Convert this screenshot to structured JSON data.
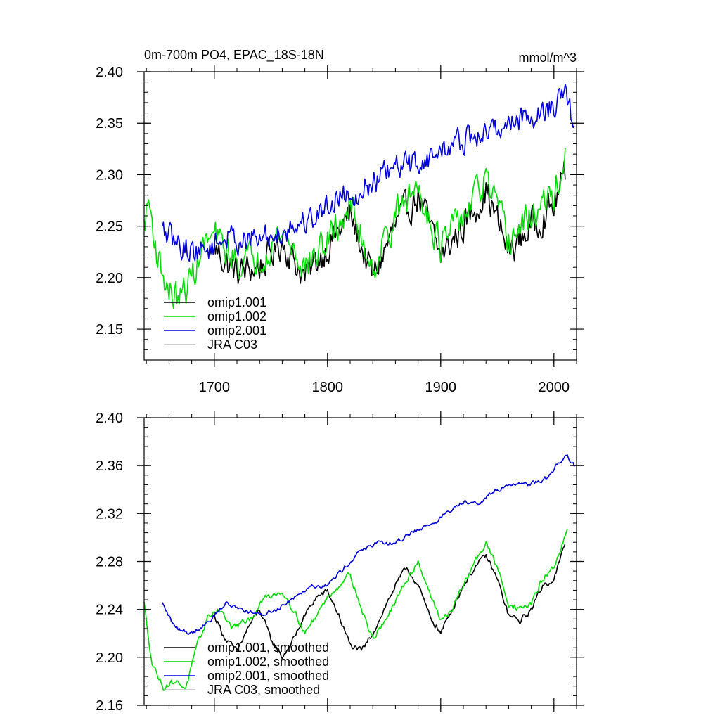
{
  "top": {
    "title_left": "0m-700m PO4, EPAC_18S-18N",
    "title_right": "mmol/m^3"
  },
  "chart_data": [
    {
      "type": "line",
      "title": "0m-700m PO4, EPAC_18S-18N",
      "units": "mmol/m^3",
      "xlabel": "",
      "ylabel": "",
      "xlim": [
        1638,
        2020
      ],
      "ylim": [
        2.12,
        2.4
      ],
      "xticks": [
        1700,
        1800,
        1900,
        2000
      ],
      "yticks": [
        2.15,
        2.2,
        2.25,
        2.3,
        2.35,
        2.4
      ],
      "legend_position": "bottom-left",
      "series": [
        {
          "name": "omip1.001",
          "color": "#000000",
          "x_range": [
            1700,
            2010
          ],
          "anchors": [
            [
              1700,
              2.23
            ],
            [
              1710,
              2.215
            ],
            [
              1720,
              2.205
            ],
            [
              1740,
              2.21
            ],
            [
              1760,
              2.235
            ],
            [
              1780,
              2.2
            ],
            [
              1800,
              2.23
            ],
            [
              1820,
              2.26
            ],
            [
              1840,
              2.2
            ],
            [
              1860,
              2.25
            ],
            [
              1880,
              2.28
            ],
            [
              1900,
              2.22
            ],
            [
              1920,
              2.25
            ],
            [
              1940,
              2.285
            ],
            [
              1960,
              2.225
            ],
            [
              1980,
              2.25
            ],
            [
              2000,
              2.27
            ],
            [
              2010,
              2.3
            ]
          ],
          "amp": 0.025
        },
        {
          "name": "omip1.002",
          "color": "#00dd00",
          "x_range": [
            1638,
            2010
          ],
          "anchors": [
            [
              1638,
              2.25
            ],
            [
              1642,
              2.275
            ],
            [
              1650,
              2.22
            ],
            [
              1660,
              2.185
            ],
            [
              1670,
              2.18
            ],
            [
              1680,
              2.2
            ],
            [
              1690,
              2.23
            ],
            [
              1700,
              2.24
            ],
            [
              1720,
              2.215
            ],
            [
              1740,
              2.22
            ],
            [
              1760,
              2.245
            ],
            [
              1780,
              2.21
            ],
            [
              1800,
              2.235
            ],
            [
              1820,
              2.27
            ],
            [
              1840,
              2.21
            ],
            [
              1860,
              2.26
            ],
            [
              1880,
              2.29
            ],
            [
              1900,
              2.23
            ],
            [
              1920,
              2.26
            ],
            [
              1940,
              2.295
            ],
            [
              1960,
              2.235
            ],
            [
              1980,
              2.26
            ],
            [
              2000,
              2.28
            ],
            [
              2010,
              2.315
            ]
          ],
          "amp": 0.025
        },
        {
          "name": "omip2.001",
          "color": "#0000dd",
          "x_range": [
            1654,
            2018
          ],
          "anchors": [
            [
              1654,
              2.245
            ],
            [
              1670,
              2.23
            ],
            [
              1690,
              2.225
            ],
            [
              1710,
              2.24
            ],
            [
              1730,
              2.235
            ],
            [
              1750,
              2.24
            ],
            [
              1770,
              2.25
            ],
            [
              1790,
              2.26
            ],
            [
              1810,
              2.28
            ],
            [
              1830,
              2.285
            ],
            [
              1850,
              2.3
            ],
            [
              1870,
              2.31
            ],
            [
              1890,
              2.315
            ],
            [
              1910,
              2.33
            ],
            [
              1930,
              2.335
            ],
            [
              1950,
              2.345
            ],
            [
              1970,
              2.355
            ],
            [
              1990,
              2.36
            ],
            [
              2010,
              2.375
            ],
            [
              2018,
              2.35
            ]
          ],
          "amp": 0.02
        },
        {
          "name": "JRA C03",
          "color": "#bbbbbb",
          "x_range": null,
          "anchors": [],
          "amp": 0
        }
      ]
    },
    {
      "type": "line",
      "title": "",
      "xlabel": "",
      "ylabel": "",
      "xlim": [
        1638,
        2020
      ],
      "ylim": [
        2.16,
        2.4
      ],
      "xticks": [
        1700,
        1800,
        1900,
        2000
      ],
      "yticks": [
        2.16,
        2.2,
        2.24,
        2.28,
        2.32,
        2.36,
        2.4
      ],
      "legend_position": "bottom-left",
      "series": [
        {
          "name": "omip1.001, smoothed",
          "color": "#000000",
          "x_range": [
            1700,
            2010
          ],
          "anchors": [
            [
              1700,
              2.235
            ],
            [
              1710,
              2.215
            ],
            [
              1720,
              2.205
            ],
            [
              1730,
              2.225
            ],
            [
              1740,
              2.24
            ],
            [
              1750,
              2.215
            ],
            [
              1760,
              2.2
            ],
            [
              1770,
              2.215
            ],
            [
              1780,
              2.235
            ],
            [
              1790,
              2.25
            ],
            [
              1800,
              2.255
            ],
            [
              1810,
              2.235
            ],
            [
              1820,
              2.21
            ],
            [
              1830,
              2.205
            ],
            [
              1840,
              2.22
            ],
            [
              1850,
              2.24
            ],
            [
              1860,
              2.26
            ],
            [
              1870,
              2.275
            ],
            [
              1880,
              2.26
            ],
            [
              1890,
              2.235
            ],
            [
              1900,
              2.22
            ],
            [
              1910,
              2.24
            ],
            [
              1920,
              2.26
            ],
            [
              1930,
              2.275
            ],
            [
              1940,
              2.285
            ],
            [
              1950,
              2.265
            ],
            [
              1960,
              2.235
            ],
            [
              1970,
              2.23
            ],
            [
              1980,
              2.24
            ],
            [
              1990,
              2.26
            ],
            [
              2000,
              2.265
            ],
            [
              2010,
              2.295
            ]
          ],
          "amp": 0.004
        },
        {
          "name": "omip1.002, smoothed",
          "color": "#00dd00",
          "x_range": [
            1638,
            2012
          ],
          "anchors": [
            [
              1638,
              2.245
            ],
            [
              1645,
              2.195
            ],
            [
              1655,
              2.175
            ],
            [
              1665,
              2.18
            ],
            [
              1675,
              2.175
            ],
            [
              1685,
              2.21
            ],
            [
              1695,
              2.235
            ],
            [
              1705,
              2.24
            ],
            [
              1715,
              2.225
            ],
            [
              1730,
              2.23
            ],
            [
              1745,
              2.25
            ],
            [
              1760,
              2.255
            ],
            [
              1770,
              2.24
            ],
            [
              1780,
              2.22
            ],
            [
              1790,
              2.235
            ],
            [
              1800,
              2.25
            ],
            [
              1810,
              2.26
            ],
            [
              1820,
              2.27
            ],
            [
              1830,
              2.24
            ],
            [
              1840,
              2.215
            ],
            [
              1850,
              2.23
            ],
            [
              1860,
              2.245
            ],
            [
              1870,
              2.265
            ],
            [
              1880,
              2.28
            ],
            [
              1890,
              2.255
            ],
            [
              1900,
              2.23
            ],
            [
              1910,
              2.24
            ],
            [
              1920,
              2.26
            ],
            [
              1930,
              2.28
            ],
            [
              1940,
              2.295
            ],
            [
              1950,
              2.275
            ],
            [
              1960,
              2.245
            ],
            [
              1970,
              2.24
            ],
            [
              1980,
              2.245
            ],
            [
              1990,
              2.265
            ],
            [
              2000,
              2.275
            ],
            [
              2012,
              2.305
            ]
          ],
          "amp": 0.004
        },
        {
          "name": "omip2.001, smoothed",
          "color": "#0000dd",
          "x_range": [
            1654,
            2018
          ],
          "anchors": [
            [
              1654,
              2.245
            ],
            [
              1665,
              2.225
            ],
            [
              1680,
              2.22
            ],
            [
              1695,
              2.23
            ],
            [
              1710,
              2.245
            ],
            [
              1725,
              2.24
            ],
            [
              1740,
              2.235
            ],
            [
              1755,
              2.24
            ],
            [
              1770,
              2.25
            ],
            [
              1785,
              2.26
            ],
            [
              1800,
              2.26
            ],
            [
              1815,
              2.275
            ],
            [
              1830,
              2.29
            ],
            [
              1845,
              2.295
            ],
            [
              1860,
              2.295
            ],
            [
              1875,
              2.305
            ],
            [
              1890,
              2.31
            ],
            [
              1905,
              2.32
            ],
            [
              1920,
              2.33
            ],
            [
              1935,
              2.33
            ],
            [
              1950,
              2.34
            ],
            [
              1965,
              2.345
            ],
            [
              1980,
              2.345
            ],
            [
              1995,
              2.35
            ],
            [
              2010,
              2.37
            ],
            [
              2018,
              2.36
            ]
          ],
          "amp": 0.003
        },
        {
          "name": "JRA C03, smoothed",
          "color": "#bbbbbb",
          "x_range": null,
          "anchors": [],
          "amp": 0
        }
      ]
    }
  ]
}
